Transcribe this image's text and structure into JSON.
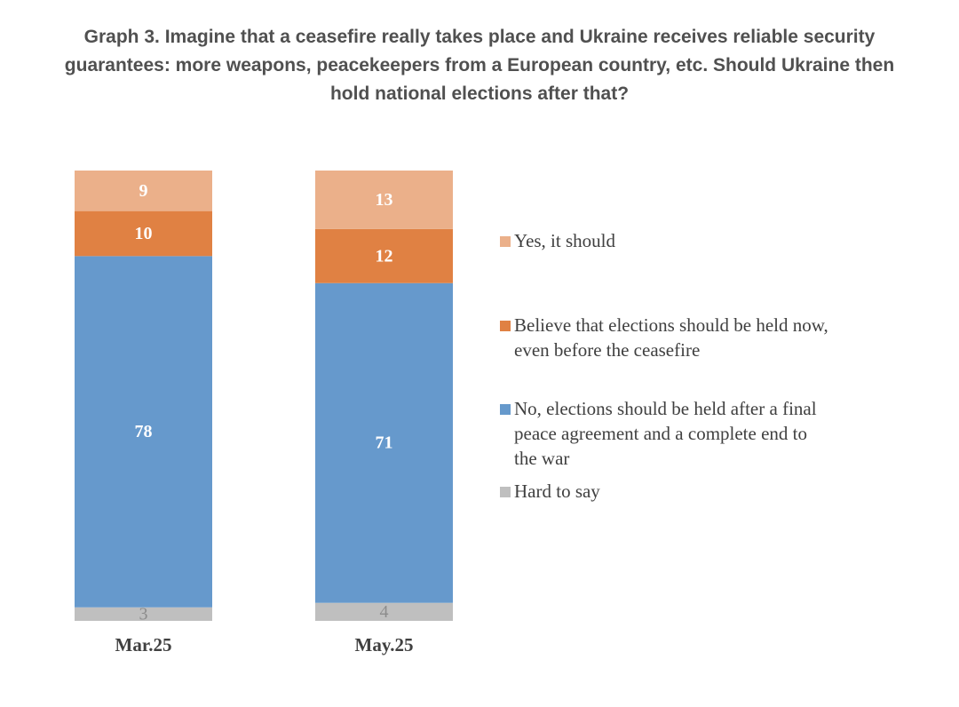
{
  "title": {
    "lines": [
      "Graph 3. Imagine that a ceasefire really takes place and Ukraine receives reliable security",
      "guarantees: more weapons, peacekeepers from a European country, etc. Should Ukraine then",
      "hold national elections after that?"
    ]
  },
  "chart_data": {
    "type": "bar",
    "stacked": true,
    "categories": [
      "Mar.25",
      "May.25"
    ],
    "series": [
      {
        "name": "Hard to say",
        "values": [
          3,
          4
        ],
        "color": "#bfbfbf"
      },
      {
        "name": "No, elections should be held after a final peace agreement and a complete end to the war",
        "values": [
          78,
          71
        ],
        "color": "#6699cc"
      },
      {
        "name": "Believe that elections should be held now, even before the ceasefire",
        "values": [
          10,
          12
        ],
        "color": "#e08143"
      },
      {
        "name": "Yes, it should",
        "values": [
          9,
          13
        ],
        "color": "#ebb08a"
      }
    ],
    "ylim": [
      0,
      100
    ],
    "grid": false,
    "legend_position": "right"
  },
  "legend": {
    "items": [
      {
        "lines": [
          "Yes, it should"
        ],
        "color": "#ebb08a"
      },
      {
        "lines": [
          "Believe that elections should be held now,",
          "even before the ceasefire"
        ],
        "color": "#e08143"
      },
      {
        "lines": [
          "No, elections should be held after a final",
          "peace agreement and a complete end to",
          "the war"
        ],
        "color": "#6699cc"
      },
      {
        "lines": [
          "Hard to say"
        ],
        "color": "#bfbfbf"
      }
    ]
  }
}
